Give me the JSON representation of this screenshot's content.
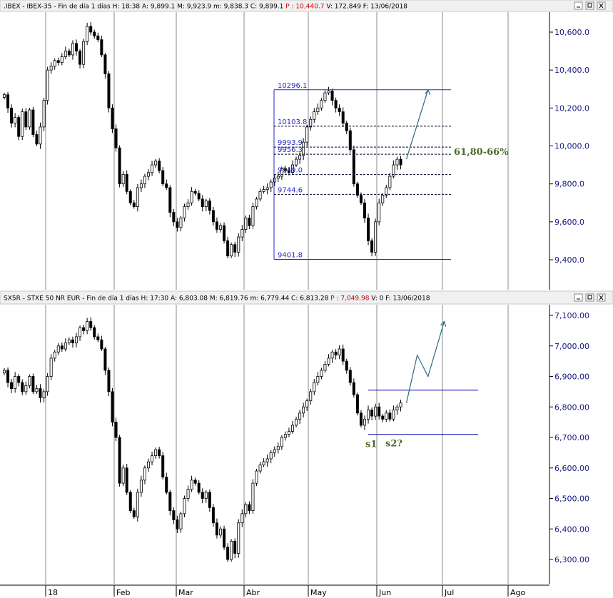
{
  "chart_data": [
    {
      "type": "candlestick",
      "title": ".IBEX - IBEX-35 - Fin de día 1 días",
      "header": [
        {
          "text": ".IBEX - IBEX-35 - Fin de día 1 días  H: 18:38  A: 9,899.1  M: 9,923.9  m: 9,838.3  C: 9,899.1",
          "color": "#000000"
        },
        {
          "text": "P : 10,440.7",
          "color": "#cc0000"
        },
        {
          "text": "V: 172,849  F: 13/06/2018",
          "color": "#000000"
        }
      ],
      "ylim": [
        9300,
        10700
      ],
      "yticks": [
        9400,
        9600,
        9800,
        10000,
        10200,
        10400,
        10600
      ],
      "ytick_labels": [
        "9,400.0",
        "9,600.0",
        "9,800.0",
        "10,000.0",
        "10,200.0",
        "10,400.0",
        "10,600.0"
      ],
      "close_series": [
        10270,
        10200,
        10120,
        10150,
        10050,
        10180,
        10100,
        10190,
        10060,
        10010,
        10100,
        10240,
        10400,
        10420,
        10450,
        10440,
        10470,
        10500,
        10480,
        10540,
        10500,
        10430,
        10550,
        10630,
        10600,
        10580,
        10560,
        10480,
        10380,
        10200,
        10090,
        9990,
        9800,
        9850,
        9760,
        9700,
        9680,
        9780,
        9800,
        9840,
        9860,
        9900,
        9920,
        9870,
        9800,
        9780,
        9650,
        9600,
        9570,
        9620,
        9680,
        9700,
        9760,
        9750,
        9720,
        9680,
        9710,
        9660,
        9600,
        9560,
        9580,
        9500,
        9420,
        9480,
        9440,
        9520,
        9560,
        9620,
        9580,
        9680,
        9720,
        9760,
        9770,
        9780,
        9810,
        9830,
        9840,
        9880,
        9870,
        9860,
        9900,
        9930,
        9950,
        10020,
        10100,
        10140,
        10180,
        10200,
        10240,
        10280,
        10290,
        10240,
        10200,
        10180,
        10120,
        10080,
        9980,
        9800,
        9740,
        9700,
        9620,
        9500,
        9440,
        9600,
        9700,
        9740,
        9780,
        9840,
        9900,
        9930,
        9900
      ],
      "fib_levels": [
        {
          "value": 10296.1,
          "label": "10296.1",
          "style": "solid"
        },
        {
          "value": 10103.8,
          "label": "10103.8",
          "style": "dash"
        },
        {
          "value": 9993.9,
          "label": "9993.9",
          "style": "dash"
        },
        {
          "value": 9956.3,
          "label": "9956.3",
          "style": "dash"
        },
        {
          "value": 9849.0,
          "label": "9849.0",
          "style": "dash"
        },
        {
          "value": 9744.6,
          "label": "9744.6",
          "style": "dash"
        },
        {
          "value": 9401.8,
          "label": "9401.8",
          "style": "solid"
        }
      ],
      "annotation": "61,80-66%",
      "projection": [
        [
          9930,
          0
        ],
        [
          10296,
          6
        ]
      ]
    },
    {
      "type": "candlestick",
      "title": "SX5R - STXE 50 NR EUR - Fin de día 1 días",
      "header": [
        {
          "text": "SX5R - STXE 50 NR EUR - Fin de día 1 días  H: 17:30  A: 6,803.08  M: 6,819.76  m: 6,779.44  C: 6,813.28",
          "color": "#000000"
        },
        {
          "text": "P : 7,049.98",
          "color": "#cc0000"
        },
        {
          "text": "V: 0  F: 13/06/2018",
          "color": "#000000"
        }
      ],
      "ylim": [
        6260,
        7130
      ],
      "yticks": [
        6300,
        6400,
        6500,
        6600,
        6700,
        6800,
        6900,
        7000,
        7100
      ],
      "ytick_labels": [
        "6,300.00",
        "6,400.00",
        "6,500.00",
        "6,600.00",
        "6,700.00",
        "6,800.00",
        "6,900.00",
        "7,000.00",
        "7,100.00"
      ],
      "close_series": [
        6920,
        6880,
        6860,
        6900,
        6880,
        6850,
        6870,
        6900,
        6850,
        6860,
        6830,
        6850,
        6900,
        6960,
        6980,
        7000,
        6990,
        7010,
        7020,
        7010,
        7030,
        7060,
        7050,
        7080,
        7060,
        7030,
        7020,
        6990,
        6920,
        6850,
        6750,
        6700,
        6550,
        6600,
        6520,
        6460,
        6440,
        6520,
        6560,
        6600,
        6620,
        6640,
        6660,
        6640,
        6570,
        6520,
        6460,
        6430,
        6400,
        6450,
        6500,
        6530,
        6560,
        6550,
        6520,
        6500,
        6520,
        6470,
        6420,
        6380,
        6400,
        6340,
        6300,
        6360,
        6320,
        6420,
        6450,
        6480,
        6460,
        6550,
        6590,
        6610,
        6620,
        6630,
        6650,
        6660,
        6670,
        6700,
        6710,
        6720,
        6740,
        6760,
        6780,
        6800,
        6820,
        6850,
        6880,
        6900,
        6920,
        6940,
        6960,
        6980,
        6970,
        6990,
        6950,
        6920,
        6880,
        6840,
        6780,
        6740,
        6760,
        6790,
        6770,
        6800,
        6770,
        6760,
        6780,
        6760,
        6790,
        6800,
        6813
      ],
      "resistance": 6855,
      "support": 6710,
      "labels": [
        "s1",
        "s2?"
      ],
      "projection": [
        [
          6813,
          0
        ],
        [
          6970,
          2
        ],
        [
          6900,
          4
        ],
        [
          7080,
          7
        ]
      ]
    }
  ],
  "x_axis": {
    "labels": [
      "18",
      "Feb",
      "Mar",
      "Abr",
      "May",
      "Jun",
      "Jul",
      "Ago"
    ]
  },
  "colors": {
    "axis_text": "#1a1a80",
    "fib_lines": "#2828c8",
    "annotation": "#4a6a28",
    "projection": "#2a6c80",
    "header_bg": "#f0f0f0"
  }
}
